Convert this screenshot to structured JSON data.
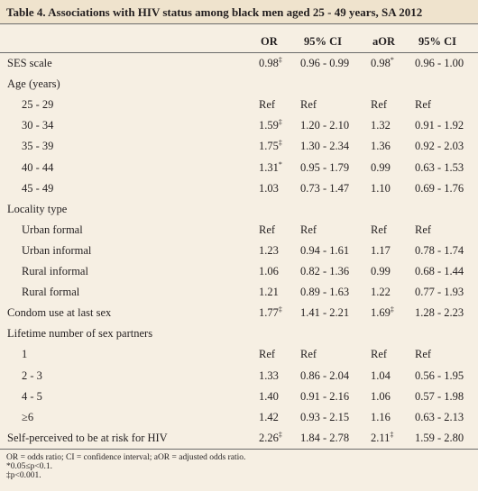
{
  "title": "Table 4. Associations with HIV status among black men aged 25 - 49 years, SA 2012",
  "columns": [
    "OR",
    "95% CI",
    "aOR",
    "95% CI"
  ],
  "rows": [
    {
      "label": "SES scale",
      "cells": [
        {
          "text": "0.98",
          "sup": "‡"
        },
        "0.96 - 0.99",
        {
          "text": "0.98",
          "sup": "*"
        },
        "0.96 - 1.00"
      ]
    },
    {
      "label": "Age (years)",
      "subrows": [
        {
          "label": "25 - 29",
          "cells": [
            "Ref",
            "Ref",
            "Ref",
            "Ref"
          ]
        },
        {
          "label": "30 - 34",
          "cells": [
            {
              "text": "1.59",
              "sup": "‡"
            },
            "1.20 - 2.10",
            "1.32",
            "0.91 - 1.92"
          ]
        },
        {
          "label": "35 - 39",
          "cells": [
            {
              "text": "1.75",
              "sup": "‡"
            },
            "1.30 - 2.34",
            "1.36",
            "0.92 - 2.03"
          ]
        },
        {
          "label": "40 - 44",
          "cells": [
            {
              "text": "1.31",
              "sup": "*"
            },
            "0.95 - 1.79",
            "0.99",
            "0.63 - 1.53"
          ]
        },
        {
          "label": "45 - 49",
          "cells": [
            "1.03",
            "0.73 - 1.47",
            "1.10",
            "0.69 - 1.76"
          ]
        }
      ]
    },
    {
      "label": "Locality type",
      "subrows": [
        {
          "label": "Urban formal",
          "cells": [
            "Ref",
            "Ref",
            "Ref",
            "Ref"
          ]
        },
        {
          "label": "Urban informal",
          "cells": [
            "1.23",
            "0.94 - 1.61",
            "1.17",
            "0.78 - 1.74"
          ]
        },
        {
          "label": "Rural informal",
          "cells": [
            "1.06",
            "0.82 - 1.36",
            "0.99",
            "0.68 - 1.44"
          ]
        },
        {
          "label": "Rural formal",
          "cells": [
            "1.21",
            "0.89 - 1.63",
            "1.22",
            "0.77 - 1.93"
          ]
        }
      ]
    },
    {
      "label": "Condom use at last sex",
      "cells": [
        {
          "text": "1.77",
          "sup": "‡"
        },
        "1.41 - 2.21",
        {
          "text": "1.69",
          "sup": "‡"
        },
        "1.28 - 2.23"
      ]
    },
    {
      "label": "Lifetime number of sex partners",
      "subrows": [
        {
          "label": "1",
          "cells": [
            "Ref",
            "Ref",
            "Ref",
            "Ref"
          ]
        },
        {
          "label": "2 - 3",
          "cells": [
            "1.33",
            "0.86 - 2.04",
            "1.04",
            "0.56 - 1.95"
          ]
        },
        {
          "label": "4 - 5",
          "cells": [
            "1.40",
            "0.91 - 2.16",
            "1.06",
            "0.57 - 1.98"
          ]
        },
        {
          "label": "≥6",
          "cells": [
            "1.42",
            "0.93 - 2.15",
            "1.16",
            "0.63 - 2.13"
          ]
        }
      ]
    },
    {
      "label": "Self-perceived to be at risk for HIV",
      "cells": [
        {
          "text": "2.26",
          "sup": "‡"
        },
        "1.84 - 2.78",
        {
          "text": "2.11",
          "sup": "‡"
        },
        "1.59 - 2.80"
      ]
    }
  ],
  "footnotes": [
    "OR = odds ratio; CI = confidence interval; aOR = adjusted odds ratio.",
    "*0.05≤p<0.1.",
    "‡p<0.001."
  ]
}
